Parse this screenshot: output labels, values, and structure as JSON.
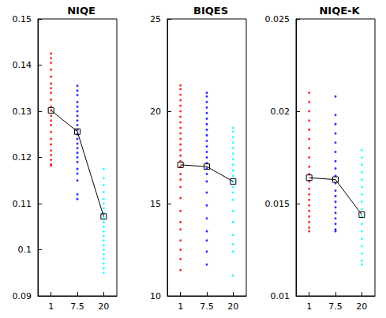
{
  "chart_data": [
    {
      "type": "scatter",
      "title": "NIQE",
      "categories": [
        "1",
        "7.5",
        "20"
      ],
      "colors": [
        "#ff0000",
        "#0000ff",
        "#00ffff"
      ],
      "points": [
        [
          0.1425,
          0.1415,
          0.1405,
          0.139,
          0.1375,
          0.136,
          0.135,
          0.134,
          0.1325,
          0.131,
          0.1302,
          0.129,
          0.128,
          0.127,
          0.1255,
          0.124,
          0.1228,
          0.1215,
          0.1205,
          0.1195,
          0.1185,
          0.1182
        ],
        [
          0.1355,
          0.1345,
          0.1335,
          0.132,
          0.131,
          0.13,
          0.129,
          0.128,
          0.127,
          0.126,
          0.125,
          0.124,
          0.123,
          0.122,
          0.121,
          0.12,
          0.119,
          0.1175,
          0.1165,
          0.115,
          0.112,
          0.111
        ],
        [
          0.1175,
          0.1155,
          0.114,
          0.1125,
          0.111,
          0.11,
          0.109,
          0.108,
          0.107,
          0.106,
          0.105,
          0.104,
          0.103,
          0.102,
          0.101,
          0.1,
          0.099,
          0.098,
          0.097,
          0.096,
          0.095
        ]
      ],
      "series": [
        {
          "type": "line",
          "color": "#000000",
          "marker": "square",
          "values": [
            0.1302,
            0.1256,
            0.1072
          ]
        }
      ],
      "ylim": [
        0.09,
        0.15
      ],
      "yticks": [
        0.09,
        0.1,
        0.11,
        0.12,
        0.13,
        0.14,
        0.15
      ],
      "grid": false
    },
    {
      "type": "scatter",
      "title": "BIQES",
      "categories": [
        "1",
        "7.5",
        "20"
      ],
      "colors": [
        "#ff0000",
        "#0000ff",
        "#00ffff"
      ],
      "points": [
        [
          21.4,
          21.2,
          20.9,
          20.6,
          20.3,
          20,
          19.7,
          19.4,
          19.1,
          18.8,
          18.5,
          18.2,
          17.9,
          17.6,
          17.3,
          17,
          16.6,
          16.3,
          15.9,
          15.3,
          14.6,
          14,
          13.6,
          13,
          12.5,
          12,
          11.4
        ],
        [
          21,
          20.8,
          20.5,
          20.2,
          19.9,
          19.6,
          19.3,
          19,
          18.7,
          18.4,
          18.1,
          17.8,
          17.5,
          17.2,
          16.9,
          16.6,
          16.2,
          15.6,
          14.9,
          14.2,
          13.5,
          13,
          12.4,
          11.7
        ],
        [
          19.1,
          18.9,
          18.6,
          18.3,
          18,
          17.7,
          17.4,
          17.1,
          16.8,
          16.5,
          16.2,
          15.9,
          15.6,
          15.2,
          14.6,
          14,
          13.3,
          12.8,
          12.4,
          11.1
        ]
      ],
      "series": [
        {
          "type": "line",
          "color": "#000000",
          "marker": "square",
          "values": [
            17.1,
            17.0,
            16.2
          ]
        }
      ],
      "ylim": [
        10,
        25
      ],
      "yticks": [
        10,
        15,
        20,
        25
      ],
      "grid": false
    },
    {
      "type": "scatter",
      "title": "NIQE-K",
      "categories": [
        "1",
        "7.5",
        "20"
      ],
      "colors": [
        "#ff0000",
        "#0000ff",
        "#00ffff"
      ],
      "points": [
        [
          0.021,
          0.0205,
          0.02,
          0.0195,
          0.019,
          0.0185,
          0.018,
          0.0175,
          0.017,
          0.0166,
          0.0162,
          0.0158,
          0.0155,
          0.0152,
          0.0149,
          0.0146,
          0.0143,
          0.014,
          0.0137,
          0.0135
        ],
        [
          0.0208,
          0.0198,
          0.0193,
          0.0188,
          0.0183,
          0.0178,
          0.0173,
          0.0169,
          0.0165,
          0.0161,
          0.0157,
          0.0154,
          0.0151,
          0.0148,
          0.0145,
          0.0142,
          0.0139,
          0.0136,
          0.0135
        ],
        [
          0.0179,
          0.0175,
          0.0171,
          0.0167,
          0.0163,
          0.0159,
          0.0155,
          0.0151,
          0.0147,
          0.0143,
          0.0139,
          0.0135,
          0.0131,
          0.0127,
          0.0123,
          0.0119,
          0.0117
        ]
      ],
      "series": [
        {
          "type": "line",
          "color": "#000000",
          "marker": "square",
          "values": [
            0.0164,
            0.0163,
            0.0144
          ]
        }
      ],
      "ylim": [
        0.01,
        0.025
      ],
      "yticks": [
        0.01,
        0.015,
        0.02,
        0.025
      ],
      "grid": false
    }
  ]
}
